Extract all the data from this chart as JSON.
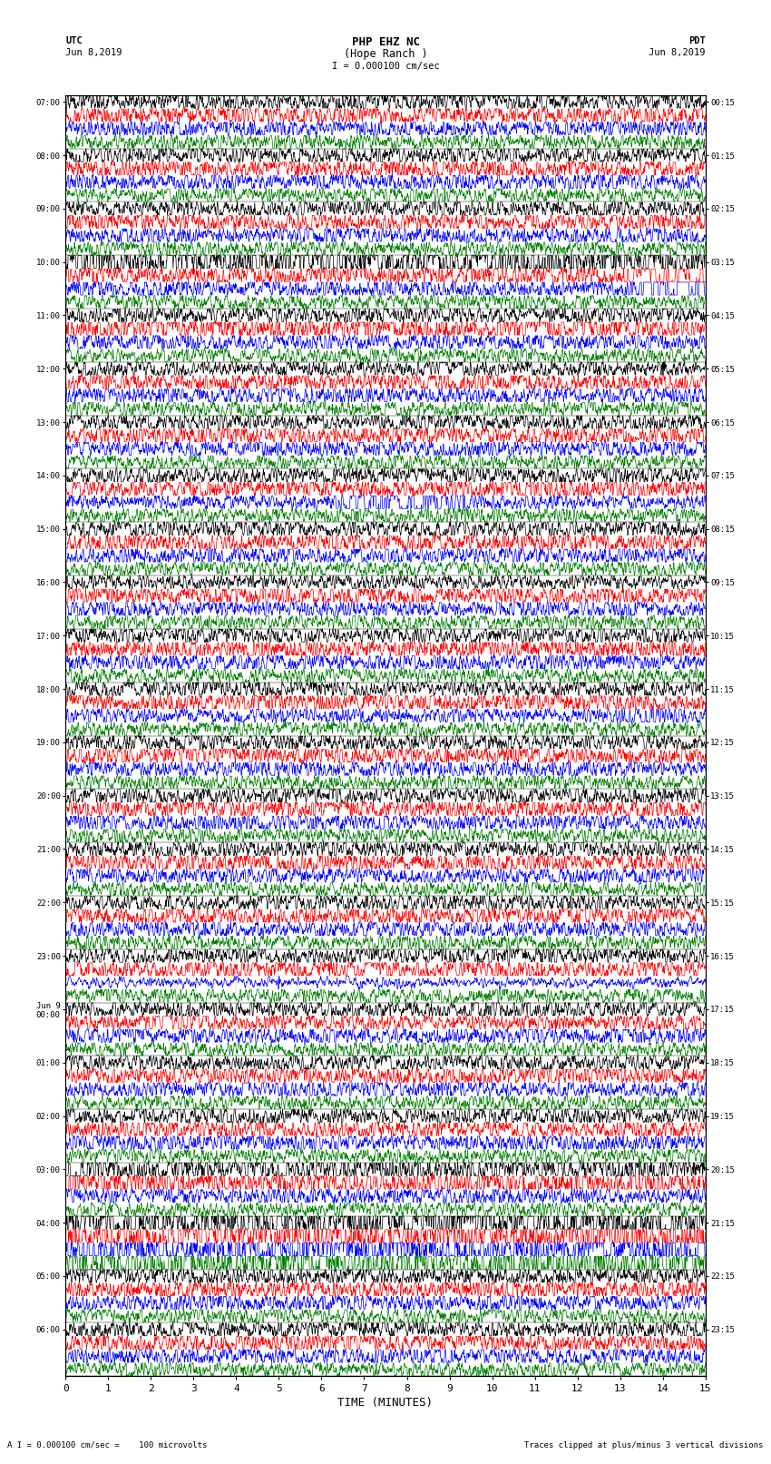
{
  "title_line1": "PHP EHZ NC",
  "title_line2": "(Hope Ranch )",
  "scale_label": "I = 0.000100 cm/sec",
  "left_header_line1": "UTC",
  "left_header_line2": "Jun 8,2019",
  "right_header_line1": "PDT",
  "right_header_line2": "Jun 8,2019",
  "footer_left": "A I = 0.000100 cm/sec =    100 microvolts",
  "footer_right": "Traces clipped at plus/minus 3 vertical divisions",
  "xlabel": "TIME (MINUTES)",
  "left_times": [
    "07:00",
    "08:00",
    "09:00",
    "10:00",
    "11:00",
    "12:00",
    "13:00",
    "14:00",
    "15:00",
    "16:00",
    "17:00",
    "18:00",
    "19:00",
    "20:00",
    "21:00",
    "22:00",
    "23:00",
    "Jun 9\n00:00",
    "01:00",
    "02:00",
    "03:00",
    "04:00",
    "05:00",
    "06:00"
  ],
  "right_times": [
    "00:15",
    "01:15",
    "02:15",
    "03:15",
    "04:15",
    "05:15",
    "06:15",
    "07:15",
    "08:15",
    "09:15",
    "10:15",
    "11:15",
    "12:15",
    "13:15",
    "14:15",
    "15:15",
    "16:15",
    "17:15",
    "18:15",
    "19:15",
    "20:15",
    "21:15",
    "22:15",
    "23:15"
  ],
  "n_hour_groups": 24,
  "traces_per_group": 4,
  "colors": [
    "black",
    "red",
    "blue",
    "green"
  ],
  "bg_color": "white",
  "fig_width": 8.5,
  "fig_height": 16.13,
  "dpi": 100,
  "xmin": 0,
  "xmax": 15,
  "xticks": [
    0,
    1,
    2,
    3,
    4,
    5,
    6,
    7,
    8,
    9,
    10,
    11,
    12,
    13,
    14,
    15
  ]
}
